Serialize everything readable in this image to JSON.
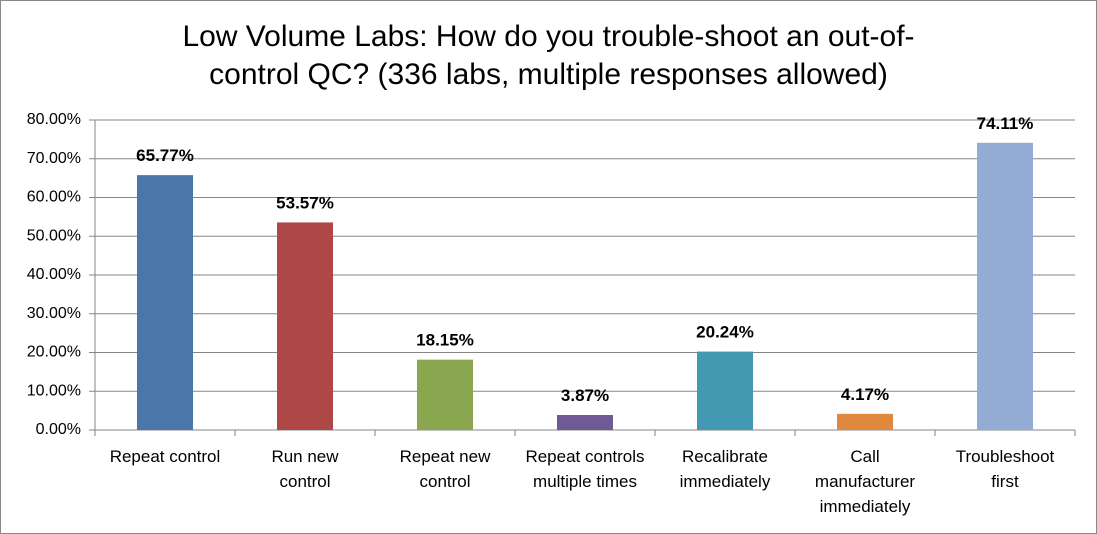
{
  "chart_data": {
    "type": "bar",
    "title": "Low Volume Labs: How do you trouble-shoot an out-of-\ncontrol QC?  (336 labs, multiple responses allowed)",
    "categories": [
      "Repeat control",
      "Run new\ncontrol",
      "Repeat new\ncontrol",
      "Repeat controls\nmultiple times",
      "Recalibrate\nimmediately",
      "Call\nmanufacturer\nimmediately",
      "Troubleshoot\nfirst"
    ],
    "values": [
      65.77,
      53.57,
      18.15,
      3.87,
      20.24,
      4.17,
      74.11
    ],
    "value_labels": [
      "65.77%",
      "53.57%",
      "18.15%",
      "3.87%",
      "20.24%",
      "4.17%",
      "74.11%"
    ],
    "colors": [
      "#4a76ac",
      "#ae4846",
      "#8aa64f",
      "#705a96",
      "#4499b2",
      "#e0893e",
      "#94abd4"
    ],
    "ylim": [
      0,
      80
    ],
    "yticks": [
      {
        "value": 0,
        "label": "0.00%"
      },
      {
        "value": 10,
        "label": "10.00%"
      },
      {
        "value": 20,
        "label": "20.00%"
      },
      {
        "value": 30,
        "label": "30.00%"
      },
      {
        "value": 40,
        "label": "40.00%"
      },
      {
        "value": 50,
        "label": "50.00%"
      },
      {
        "value": 60,
        "label": "60.00%"
      },
      {
        "value": 70,
        "label": "70.00%"
      },
      {
        "value": 80,
        "label": "80.00%"
      }
    ],
    "grid": true
  }
}
